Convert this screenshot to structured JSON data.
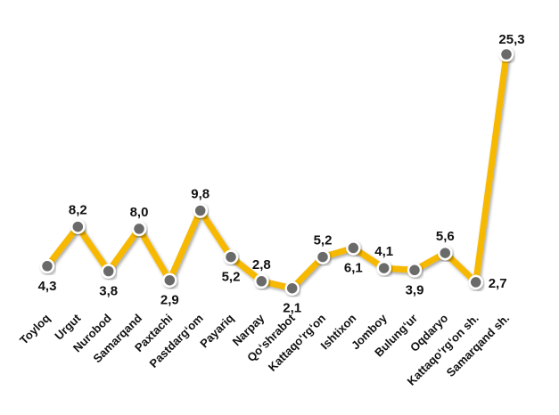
{
  "chart_data": {
    "type": "line",
    "categories": [
      "Toyloq",
      "Urgut",
      "Nurobod",
      "Samarqand",
      "Paxtachi",
      "Pastdarg‘om",
      "Payariq",
      "Narpay",
      "Qo‘shrabot",
      "Kattaqo‘rg‘on",
      "Ishtixon",
      "Jomboy",
      "Bulung‘ur",
      "Oqdaryo",
      "Kattaqo‘rg‘on sh.",
      "Samarqand sh."
    ],
    "values": [
      4.3,
      8.2,
      3.8,
      8.0,
      2.9,
      9.8,
      5.2,
      2.8,
      2.1,
      5.2,
      6.1,
      4.1,
      3.9,
      5.6,
      2.7,
      25.3
    ],
    "data_labels": [
      "4,3",
      "8,2",
      "3,8",
      "8,0",
      "2,9",
      "9,8",
      "5,2",
      "2,8",
      "2,1",
      "5,2",
      "6,1",
      "4,1",
      "3,9",
      "5,6",
      "2,7",
      "25,3"
    ],
    "title": "",
    "xlabel": "",
    "ylabel": "",
    "ylim": [
      0,
      27
    ],
    "grid": false,
    "legend": "none",
    "line_color": "#F7B800",
    "marker_fill": "#6B6B6B",
    "marker_stroke": "#FFFFFF"
  }
}
